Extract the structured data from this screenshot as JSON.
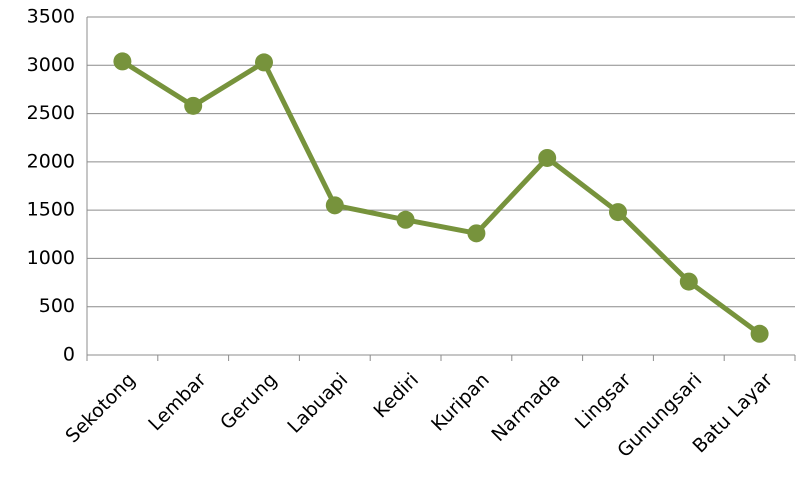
{
  "chart_data": {
    "type": "line",
    "categories": [
      "Sekotong",
      "Lembar",
      "Gerung",
      "Labuapi",
      "Kediri",
      "Kuripan",
      "Narmada",
      "Lingsar",
      "Gunungsari",
      "Batu Layar"
    ],
    "values": [
      3040,
      2580,
      3030,
      1550,
      1400,
      1260,
      2040,
      1480,
      760,
      220
    ],
    "color": "#77933c",
    "ylim": [
      0,
      3500
    ],
    "yticks": [
      0,
      500,
      1000,
      1500,
      2000,
      2500,
      3000,
      3500
    ],
    "grid": true
  }
}
